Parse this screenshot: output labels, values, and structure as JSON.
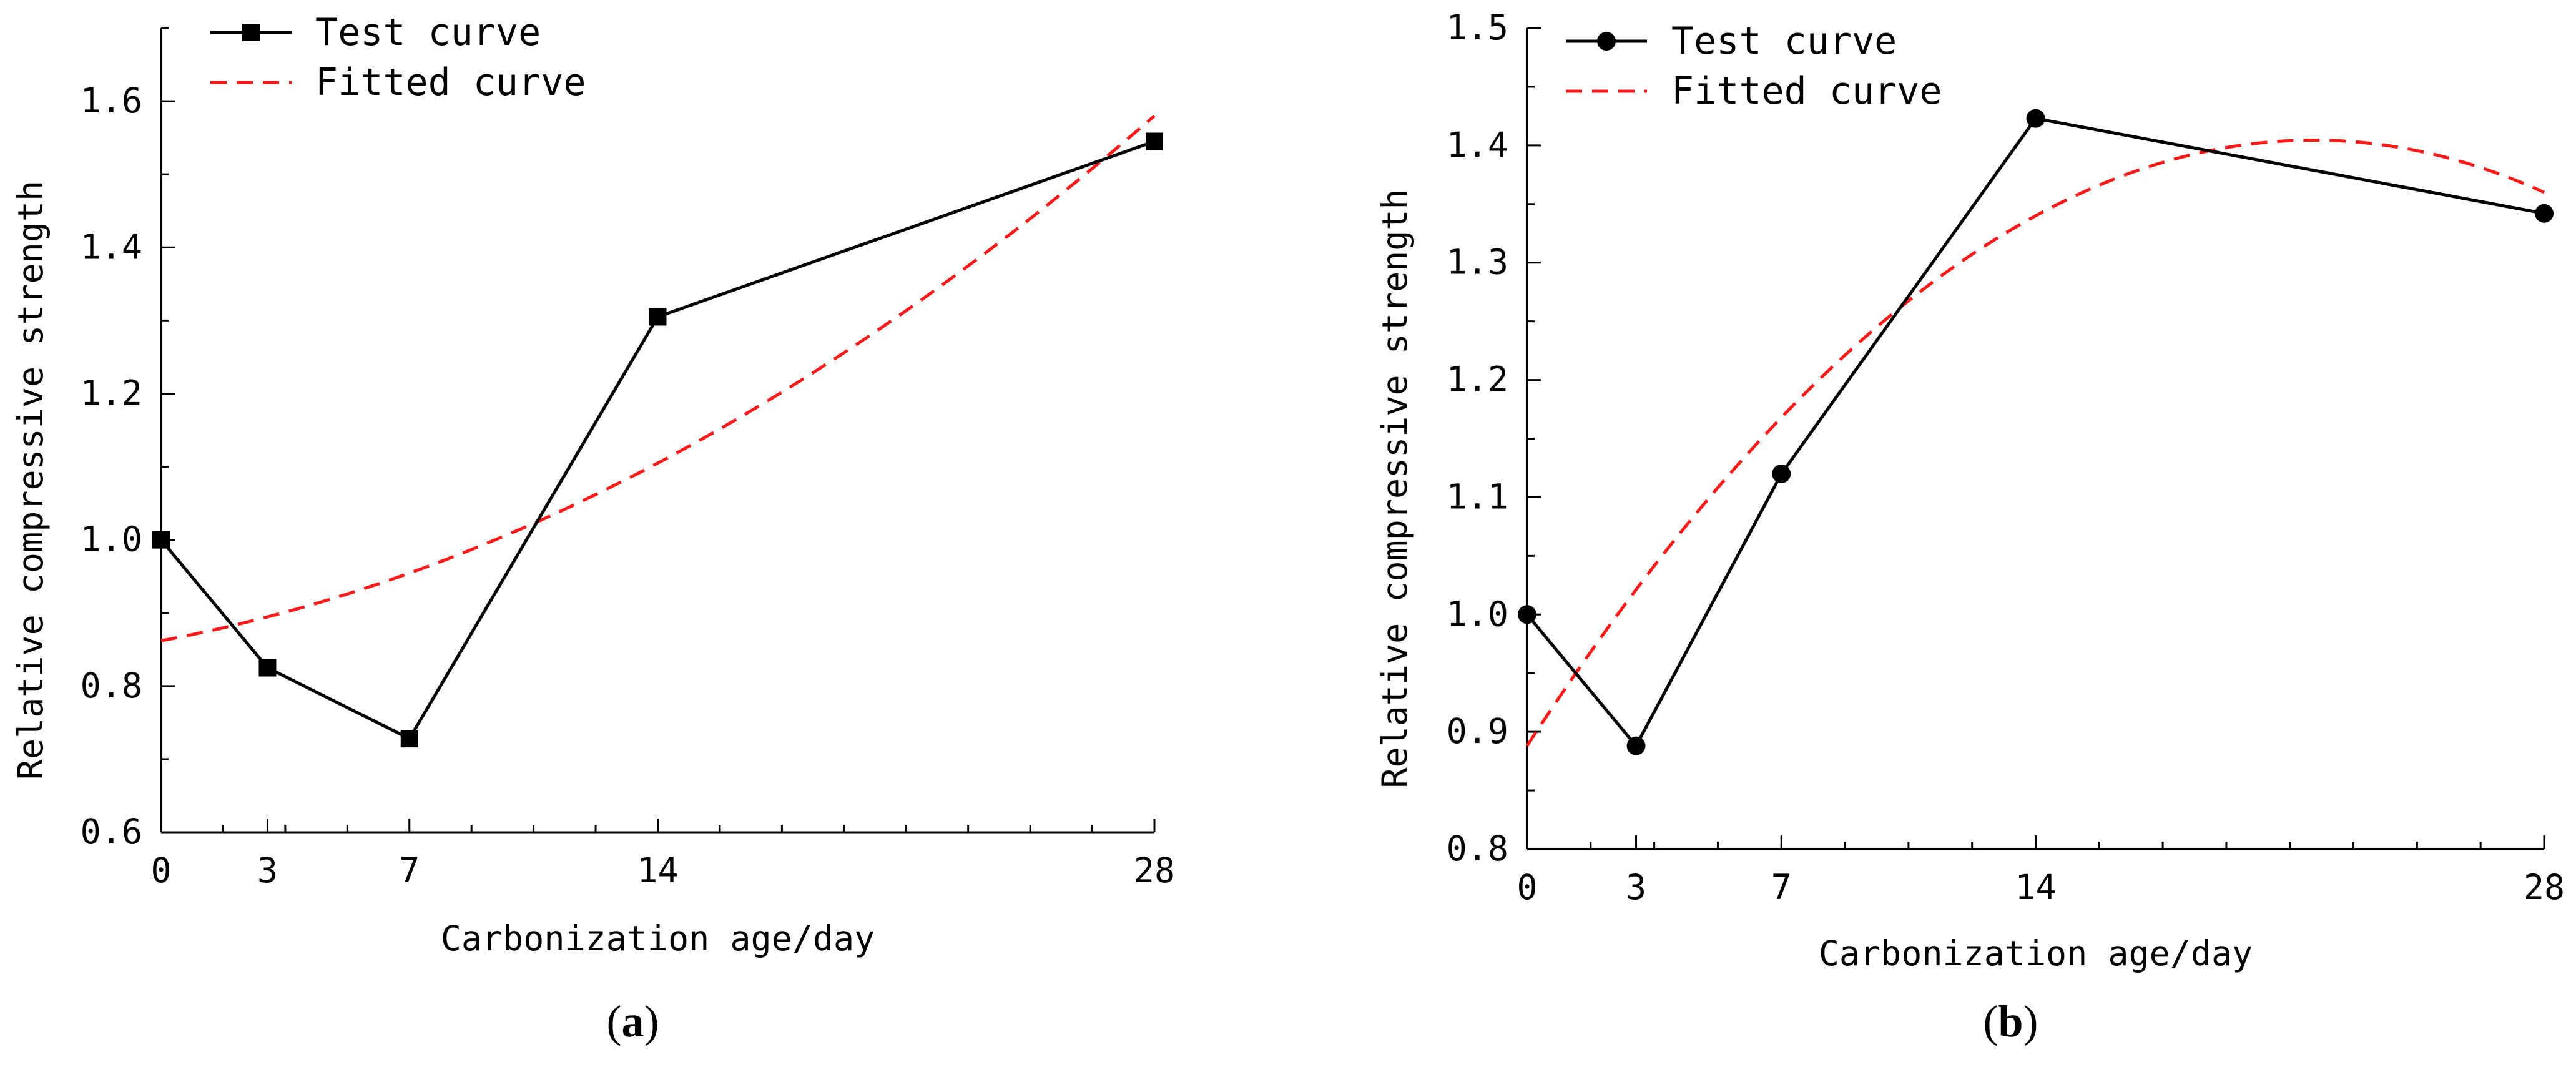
{
  "chart_data": [
    {
      "type": "line",
      "panel_label": "a",
      "x": [
        0,
        3,
        7,
        14,
        28
      ],
      "xticks": [
        0,
        3,
        7,
        14,
        28
      ],
      "xlim": [
        0,
        28
      ],
      "ylim": [
        0.6,
        1.7
      ],
      "yticks": [
        0.6,
        0.8,
        1.0,
        1.2,
        1.4,
        1.6
      ],
      "ytick_labels": [
        "0.6",
        "0.8",
        "1.0",
        "1.2",
        "1.4",
        "1.6"
      ],
      "xlabel": "Carbonization age/day",
      "ylabel": "Relative compressive strength",
      "legend_position": "top-left",
      "series": [
        {
          "name": "Test curve",
          "style": "solid",
          "marker": "square",
          "color": "#000000",
          "values": [
            1.0,
            0.825,
            0.728,
            1.305,
            1.545
          ]
        },
        {
          "name": "Fitted curve",
          "style": "dashed",
          "marker": "none",
          "color": "#ff1a1a",
          "values": [
            0.862,
            0.895,
            0.952,
            1.105,
            1.58
          ]
        }
      ]
    },
    {
      "type": "line",
      "panel_label": "b",
      "x": [
        0,
        3,
        7,
        14,
        28
      ],
      "xticks": [
        0,
        3,
        7,
        14,
        28
      ],
      "xlim": [
        0,
        28
      ],
      "ylim": [
        0.8,
        1.5
      ],
      "yticks": [
        0.8,
        0.9,
        1.0,
        1.1,
        1.2,
        1.3,
        1.4,
        1.5
      ],
      "ytick_labels": [
        "0.8",
        "0.9",
        "1.0",
        "1.1",
        "1.2",
        "1.3",
        "1.4",
        "1.5"
      ],
      "xlabel": "Carbonization age/day",
      "ylabel": "Relative compressive strength",
      "legend_position": "top-left",
      "series": [
        {
          "name": "Test curve",
          "style": "solid",
          "marker": "circle",
          "color": "#000000",
          "values": [
            1.0,
            0.888,
            1.12,
            1.423,
            1.342
          ]
        },
        {
          "name": "Fitted curve",
          "style": "dashed",
          "marker": "none",
          "color": "#ff1a1a",
          "values": [
            0.888,
            1.032,
            1.172,
            1.34,
            1.36
          ]
        }
      ]
    }
  ]
}
